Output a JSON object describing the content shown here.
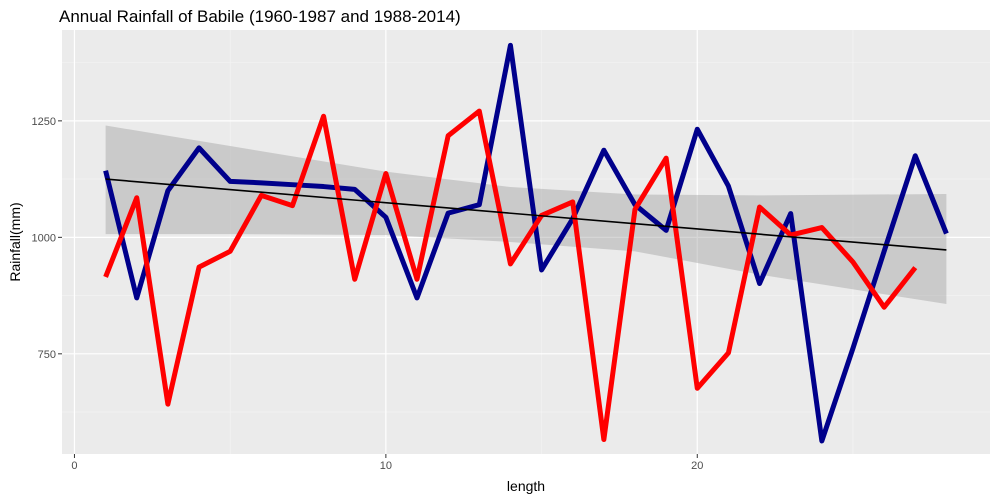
{
  "chart_data": {
    "type": "line",
    "title": "Annual Rainfall of Babile (1960-1987 and 1988-2014)",
    "xlabel": "length",
    "ylabel": "Rainfall(mm)",
    "xlim": [
      -0.4,
      29.4
    ],
    "ylim": [
      535,
      1445
    ],
    "x_ticks": [
      0,
      10,
      20
    ],
    "y_ticks": [
      750,
      1000,
      1250
    ],
    "grid": true,
    "legend": "none",
    "series": [
      {
        "color": "#00008b",
        "x": [
          1,
          2,
          3,
          4,
          5,
          6,
          7,
          8,
          9,
          10,
          11,
          12,
          13,
          14,
          15,
          16,
          17,
          18,
          19,
          20,
          21,
          22,
          23,
          24,
          25,
          26,
          27,
          28
        ],
        "values": [
          1143,
          870,
          1100,
          1192,
          1120,
          1117,
          1113,
          1109,
          1103,
          1043,
          870,
          1052,
          1070,
          1412,
          930,
          1040,
          1187,
          1070,
          1015,
          1232,
          1110,
          901,
          1051,
          563,
          762,
          970,
          1175,
          1008
        ]
      },
      {
        "color": "#ff0000",
        "x": [
          1,
          2,
          3,
          4,
          5,
          6,
          7,
          8,
          9,
          10,
          11,
          12,
          13,
          14,
          15,
          16,
          17,
          18,
          19,
          20,
          21,
          22,
          23,
          24,
          25,
          26,
          27
        ],
        "values": [
          915,
          1085,
          642,
          936,
          970,
          1090,
          1068,
          1260,
          910,
          1137,
          910,
          1218,
          1271,
          943,
          1047,
          1076,
          566,
          1060,
          1170,
          676,
          752,
          1065,
          1005,
          1021,
          947,
          850,
          935
        ]
      }
    ],
    "trend": {
      "color": "#000000",
      "x": [
        1,
        28
      ],
      "values": [
        1125,
        973
      ]
    },
    "confidence_band": {
      "color": "#999999",
      "x": [
        1,
        5,
        10,
        14,
        18,
        22,
        28
      ],
      "upper": [
        1240,
        1196,
        1141,
        1108,
        1092,
        1090,
        1093
      ],
      "lower": [
        1007,
        1007,
        1005,
        990,
        970,
        920,
        857
      ]
    }
  }
}
